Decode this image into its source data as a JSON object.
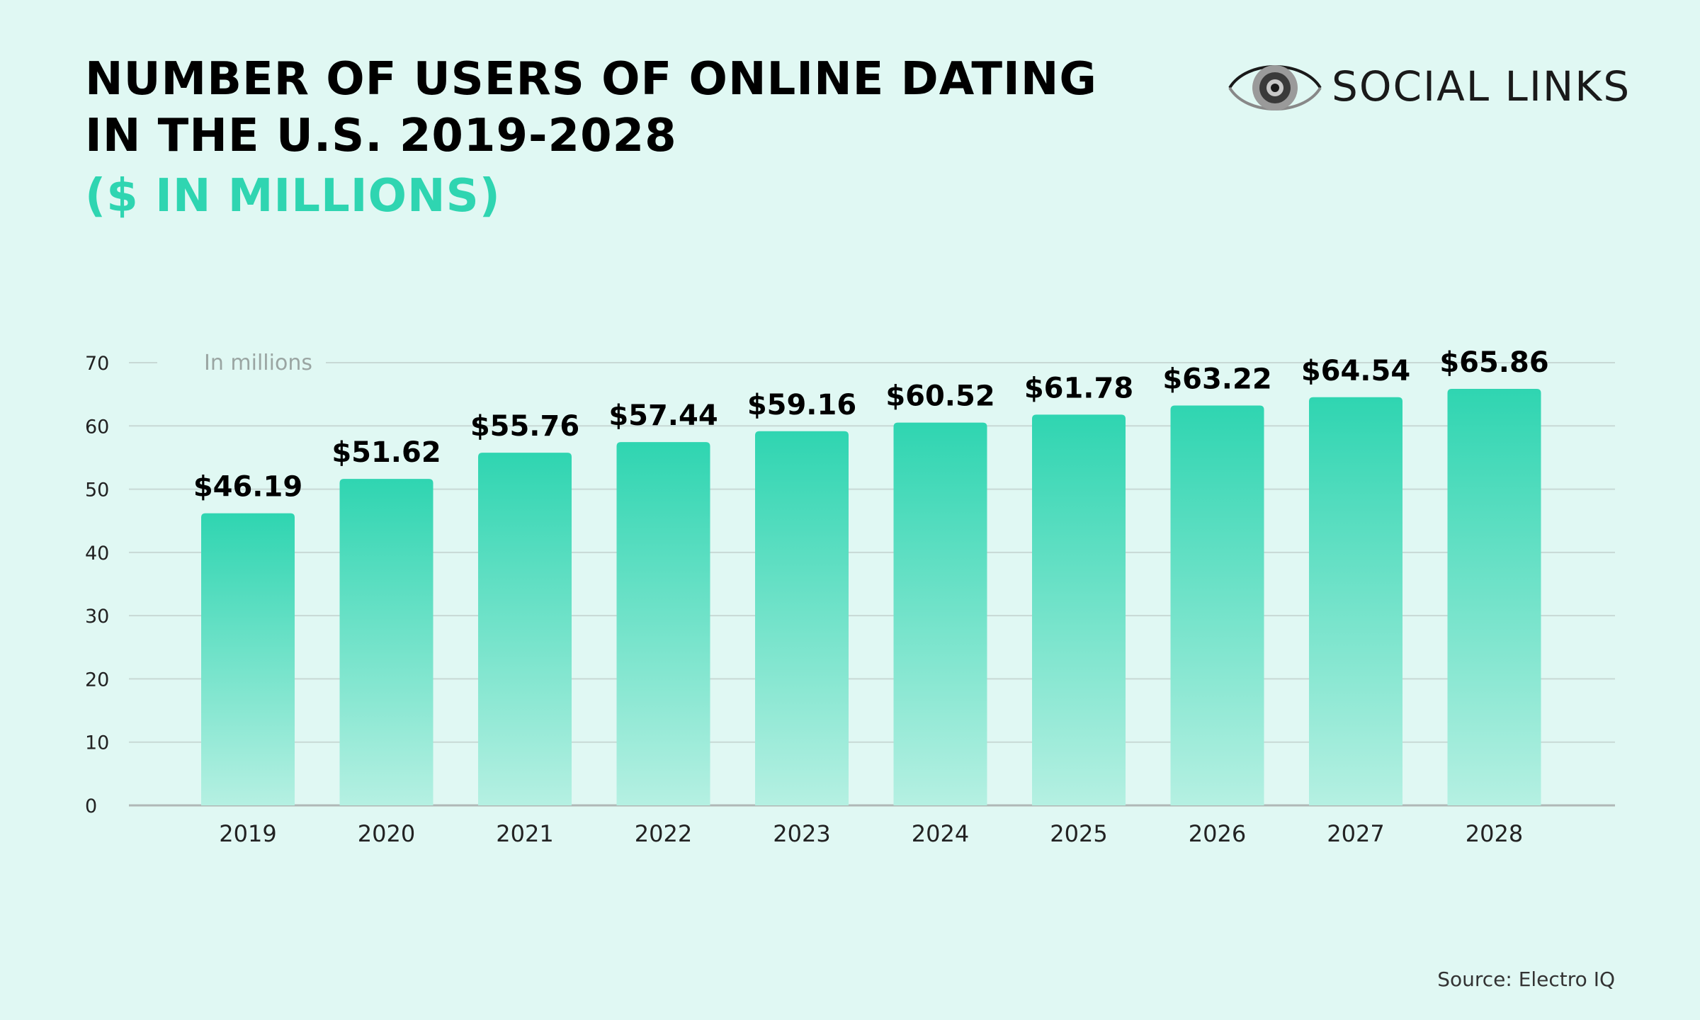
{
  "header": {
    "title_line1": "NUMBER OF USERS OF ONLINE DATING",
    "title_line2": "IN THE U.S. 2019-2028",
    "subtitle": "($ IN MILLIONS)"
  },
  "brand": {
    "name": "SOCIAL LINKS",
    "icon": "eye-logo-icon"
  },
  "source": "Source: Electro IQ",
  "colors": {
    "background": "#e0f8f3",
    "bar_top": "#2fd5b1",
    "bar_bottom": "#b5f0e2",
    "accent": "#2fd5b1",
    "grid": "#c8d9d5",
    "axis": "#b0b8b6"
  },
  "chart_data": {
    "type": "bar",
    "title": "NUMBER OF USERS OF ONLINE DATING IN THE U.S. 2019-2028 ($ IN MILLIONS)",
    "unit_label": "In millions",
    "categories": [
      "2019",
      "2020",
      "2021",
      "2022",
      "2023",
      "2024",
      "2025",
      "2026",
      "2027",
      "2028"
    ],
    "values": [
      46.19,
      51.62,
      55.76,
      57.44,
      59.16,
      60.52,
      61.78,
      63.22,
      64.54,
      65.86
    ],
    "value_labels": [
      "$46.19",
      "$51.62",
      "$55.76",
      "$57.44",
      "$59.16",
      "$60.52",
      "$61.78",
      "$63.22",
      "$64.54",
      "$65.86"
    ],
    "yticks": [
      0,
      10,
      20,
      30,
      40,
      50,
      60,
      70
    ],
    "ylim": [
      0,
      70
    ],
    "xlabel": "",
    "ylabel": "",
    "grid": true
  }
}
